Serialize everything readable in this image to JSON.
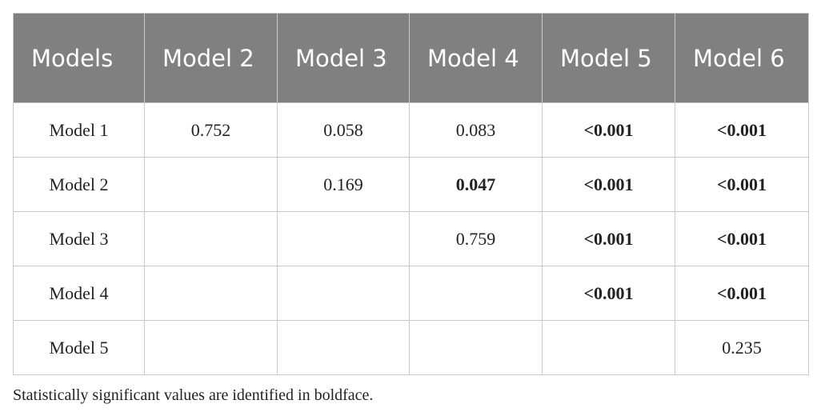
{
  "table": {
    "header": [
      "Models",
      "Model 2",
      "Model 3",
      "Model 4",
      "Model 5",
      "Model 6"
    ],
    "rows": [
      [
        "Model 1",
        "0.752",
        "0.058",
        "0.083",
        {
          "text": "<0.001",
          "bold": true
        },
        {
          "text": "<0.001",
          "bold": true
        }
      ],
      [
        "Model 2",
        null,
        "0.169",
        {
          "text": "0.047",
          "bold": true
        },
        {
          "text": "<0.001",
          "bold": true
        },
        {
          "text": "<0.001",
          "bold": true
        }
      ],
      [
        "Model 3",
        null,
        null,
        "0.759",
        {
          "text": "<0.001",
          "bold": true
        },
        {
          "text": "<0.001",
          "bold": true
        }
      ],
      [
        "Model 4",
        null,
        null,
        null,
        {
          "text": "<0.001",
          "bold": true
        },
        {
          "text": "<0.001",
          "bold": true
        }
      ],
      [
        "Model 5",
        null,
        null,
        null,
        null,
        "0.235"
      ]
    ]
  },
  "footnote": "Statistically significant values are identified in boldface."
}
